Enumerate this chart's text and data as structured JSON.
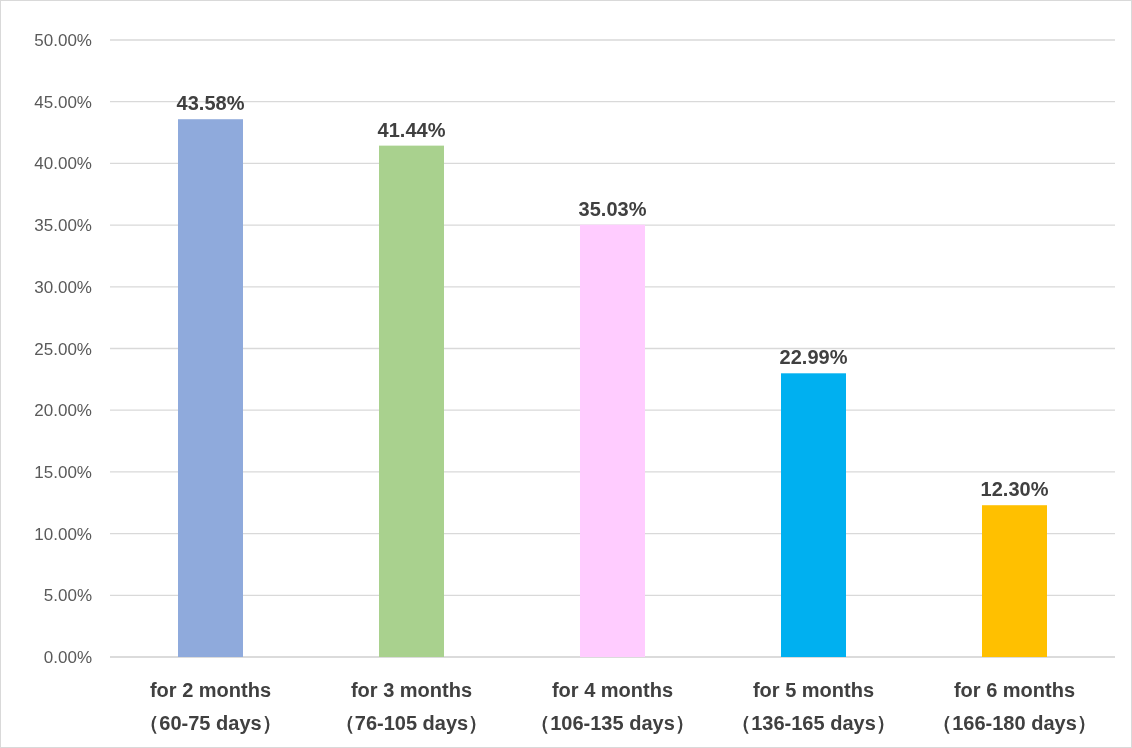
{
  "chart_data": {
    "type": "bar",
    "categories": [
      "for 2 months\n（60-75 days）",
      "for 3 months\n（76-105 days）",
      "for 4 months\n（106-135 days）",
      "for 5 months\n（136-165 days）",
      "for 6 months\n（166-180 days）"
    ],
    "values": [
      43.58,
      41.44,
      35.03,
      22.99,
      12.3
    ],
    "colors": [
      "#8faadc",
      "#a9d18e",
      "#ffccff",
      "#00b0f0",
      "#ffc000"
    ],
    "value_labels": [
      "43.58%",
      "41.44%",
      "35.03%",
      "22.99%",
      "12.30%"
    ],
    "ylim": [
      0,
      50
    ],
    "yticks": [
      {
        "value": 0,
        "label": "0.00%"
      },
      {
        "value": 5,
        "label": "5.00%"
      },
      {
        "value": 10,
        "label": "10.00%"
      },
      {
        "value": 15,
        "label": "15.00%"
      },
      {
        "value": 20,
        "label": "20.00%"
      },
      {
        "value": 25,
        "label": "25.00%"
      },
      {
        "value": 30,
        "label": "30.00%"
      },
      {
        "value": 35,
        "label": "35.00%"
      },
      {
        "value": 40,
        "label": "40.00%"
      },
      {
        "value": 45,
        "label": "45.00%"
      },
      {
        "value": 50,
        "label": "50.00%"
      }
    ],
    "grid": "y"
  }
}
